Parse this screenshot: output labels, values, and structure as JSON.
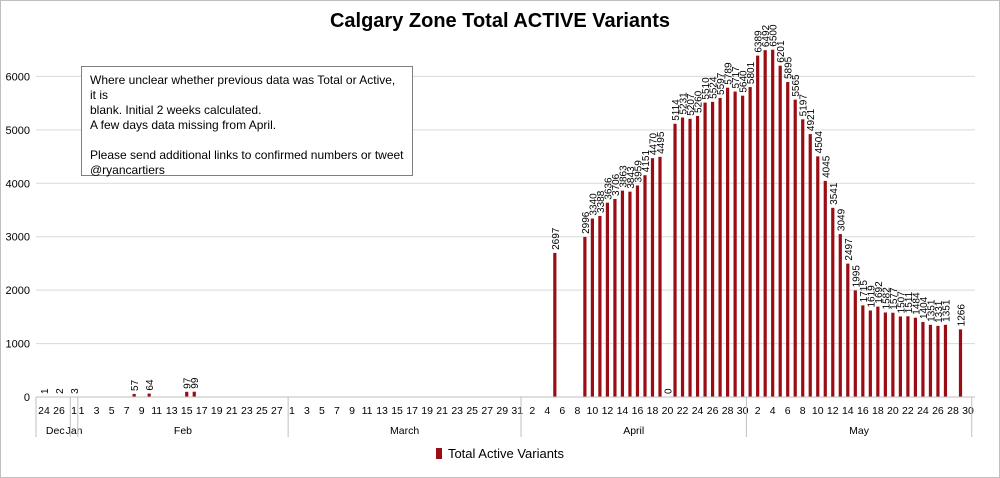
{
  "chart_data": {
    "type": "bar",
    "title": "Calgary Zone Total ACTIVE Variants",
    "xlabel": "",
    "ylabel": "",
    "ylim": [
      0,
      7000
    ],
    "yticks": [
      0,
      1000,
      2000,
      3000,
      4000,
      5000,
      6000
    ],
    "grid": true,
    "legend_position": "bottom",
    "bar_color": "#9b0d14",
    "series": [
      {
        "name": "Total Active Variants",
        "points": [
          {
            "date": "2020-12-24",
            "value": 1
          },
          {
            "date": "2020-12-26",
            "value": 2
          },
          {
            "date": "2021-01-01",
            "value": 3
          },
          {
            "date": "2021-02-08",
            "value": 57
          },
          {
            "date": "2021-02-10",
            "value": 64
          },
          {
            "date": "2021-02-15",
            "value": 97
          },
          {
            "date": "2021-02-16",
            "value": 99
          },
          {
            "date": "2021-04-05",
            "value": 2697
          },
          {
            "date": "2021-04-09",
            "value": 2996
          },
          {
            "date": "2021-04-10",
            "value": 3340
          },
          {
            "date": "2021-04-11",
            "value": 3388
          },
          {
            "date": "2021-04-12",
            "value": 3636
          },
          {
            "date": "2021-04-13",
            "value": 3706
          },
          {
            "date": "2021-04-14",
            "value": 3863
          },
          {
            "date": "2021-04-15",
            "value": 3843
          },
          {
            "date": "2021-04-16",
            "value": 3959
          },
          {
            "date": "2021-04-17",
            "value": 4151
          },
          {
            "date": "2021-04-18",
            "value": 4470
          },
          {
            "date": "2021-04-19",
            "value": 4495
          },
          {
            "date": "2021-04-20",
            "value": 0
          },
          {
            "date": "2021-04-21",
            "value": 5114
          },
          {
            "date": "2021-04-22",
            "value": 5231
          },
          {
            "date": "2021-04-23",
            "value": 5207
          },
          {
            "date": "2021-04-24",
            "value": 5260
          },
          {
            "date": "2021-04-25",
            "value": 5510
          },
          {
            "date": "2021-04-26",
            "value": 5524
          },
          {
            "date": "2021-04-27",
            "value": 5597
          },
          {
            "date": "2021-04-28",
            "value": 5789
          },
          {
            "date": "2021-04-29",
            "value": 5717
          },
          {
            "date": "2021-04-30",
            "value": 5640
          },
          {
            "date": "2021-05-01",
            "value": 5801
          },
          {
            "date": "2021-05-02",
            "value": 6389
          },
          {
            "date": "2021-05-03",
            "value": 6492
          },
          {
            "date": "2021-05-04",
            "value": 6500
          },
          {
            "date": "2021-05-05",
            "value": 6201
          },
          {
            "date": "2021-05-06",
            "value": 5895
          },
          {
            "date": "2021-05-07",
            "value": 5565
          },
          {
            "date": "2021-05-08",
            "value": 5197
          },
          {
            "date": "2021-05-09",
            "value": 4921
          },
          {
            "date": "2021-05-10",
            "value": 4504
          },
          {
            "date": "2021-05-11",
            "value": 4045
          },
          {
            "date": "2021-05-12",
            "value": 3541
          },
          {
            "date": "2021-05-13",
            "value": 3049
          },
          {
            "date": "2021-05-14",
            "value": 2497
          },
          {
            "date": "2021-05-15",
            "value": 1995
          },
          {
            "date": "2021-05-16",
            "value": 1715
          },
          {
            "date": "2021-05-17",
            "value": 1619
          },
          {
            "date": "2021-05-18",
            "value": 1692
          },
          {
            "date": "2021-05-19",
            "value": 1582
          },
          {
            "date": "2021-05-20",
            "value": 1577
          },
          {
            "date": "2021-05-21",
            "value": 1507
          },
          {
            "date": "2021-05-22",
            "value": 1511
          },
          {
            "date": "2021-05-23",
            "value": 1484
          },
          {
            "date": "2021-05-24",
            "value": 1404
          },
          {
            "date": "2021-05-25",
            "value": 1351
          },
          {
            "date": "2021-05-26",
            "value": 1331
          },
          {
            "date": "2021-05-27",
            "value": 1351
          },
          {
            "date": "2021-05-29",
            "value": 1266
          }
        ]
      }
    ],
    "day_ticks": [
      {
        "date": "2020-12-24",
        "label": "24"
      },
      {
        "date": "2020-12-26",
        "label": "26"
      },
      {
        "date": "2021-01-01",
        "label": "1"
      },
      {
        "date": "2021-02-01",
        "label": "1"
      },
      {
        "date": "2021-02-03",
        "label": "3"
      },
      {
        "date": "2021-02-05",
        "label": "5"
      },
      {
        "date": "2021-02-07",
        "label": "7"
      },
      {
        "date": "2021-02-09",
        "label": "9"
      },
      {
        "date": "2021-02-11",
        "label": "11"
      },
      {
        "date": "2021-02-13",
        "label": "13"
      },
      {
        "date": "2021-02-15",
        "label": "15"
      },
      {
        "date": "2021-02-17",
        "label": "17"
      },
      {
        "date": "2021-02-19",
        "label": "19"
      },
      {
        "date": "2021-02-21",
        "label": "21"
      },
      {
        "date": "2021-02-23",
        "label": "23"
      },
      {
        "date": "2021-02-25",
        "label": "25"
      },
      {
        "date": "2021-02-27",
        "label": "27"
      },
      {
        "date": "2021-03-01",
        "label": "1"
      },
      {
        "date": "2021-03-03",
        "label": "3"
      },
      {
        "date": "2021-03-05",
        "label": "5"
      },
      {
        "date": "2021-03-07",
        "label": "7"
      },
      {
        "date": "2021-03-09",
        "label": "9"
      },
      {
        "date": "2021-03-11",
        "label": "11"
      },
      {
        "date": "2021-03-13",
        "label": "13"
      },
      {
        "date": "2021-03-15",
        "label": "15"
      },
      {
        "date": "2021-03-17",
        "label": "17"
      },
      {
        "date": "2021-03-19",
        "label": "19"
      },
      {
        "date": "2021-03-21",
        "label": "21"
      },
      {
        "date": "2021-03-23",
        "label": "23"
      },
      {
        "date": "2021-03-25",
        "label": "25"
      },
      {
        "date": "2021-03-27",
        "label": "27"
      },
      {
        "date": "2021-03-29",
        "label": "29"
      },
      {
        "date": "2021-03-31",
        "label": "31"
      },
      {
        "date": "2021-04-02",
        "label": "2"
      },
      {
        "date": "2021-04-04",
        "label": "4"
      },
      {
        "date": "2021-04-06",
        "label": "6"
      },
      {
        "date": "2021-04-08",
        "label": "8"
      },
      {
        "date": "2021-04-10",
        "label": "10"
      },
      {
        "date": "2021-04-12",
        "label": "12"
      },
      {
        "date": "2021-04-14",
        "label": "14"
      },
      {
        "date": "2021-04-16",
        "label": "16"
      },
      {
        "date": "2021-04-18",
        "label": "18"
      },
      {
        "date": "2021-04-20",
        "label": "20"
      },
      {
        "date": "2021-04-22",
        "label": "22"
      },
      {
        "date": "2021-04-24",
        "label": "24"
      },
      {
        "date": "2021-04-26",
        "label": "26"
      },
      {
        "date": "2021-04-28",
        "label": "28"
      },
      {
        "date": "2021-04-30",
        "label": "30"
      },
      {
        "date": "2021-05-02",
        "label": "2"
      },
      {
        "date": "2021-05-04",
        "label": "4"
      },
      {
        "date": "2021-05-06",
        "label": "6"
      },
      {
        "date": "2021-05-08",
        "label": "8"
      },
      {
        "date": "2021-05-10",
        "label": "10"
      },
      {
        "date": "2021-05-12",
        "label": "12"
      },
      {
        "date": "2021-05-14",
        "label": "14"
      },
      {
        "date": "2021-05-16",
        "label": "16"
      },
      {
        "date": "2021-05-18",
        "label": "18"
      },
      {
        "date": "2021-05-20",
        "label": "20"
      },
      {
        "date": "2021-05-22",
        "label": "22"
      },
      {
        "date": "2021-05-24",
        "label": "24"
      },
      {
        "date": "2021-05-26",
        "label": "26"
      },
      {
        "date": "2021-05-28",
        "label": "28"
      },
      {
        "date": "2021-05-30",
        "label": "30"
      }
    ],
    "month_groups": [
      {
        "label": "Dec",
        "start": "2020-12-24",
        "end": "2020-12-27"
      },
      {
        "label": "Jan",
        "start": "2021-01-01",
        "end": "2021-01-01"
      },
      {
        "label": "Feb",
        "start": "2021-02-01",
        "end": "2021-02-28"
      },
      {
        "label": "March",
        "start": "2021-03-01",
        "end": "2021-03-31"
      },
      {
        "label": "April",
        "start": "2021-04-01",
        "end": "2021-04-30"
      },
      {
        "label": "May",
        "start": "2021-05-01",
        "end": "2021-05-30"
      }
    ]
  },
  "annotation": {
    "paragraph1": "Where unclear whether previous data was Total or Active, it is\nblank.  Initial 2 weeks calculated.\nA few days data missing from April.",
    "paragraph2": "Please send additional links to confirmed numbers or tweet\n@ryancartiers"
  }
}
